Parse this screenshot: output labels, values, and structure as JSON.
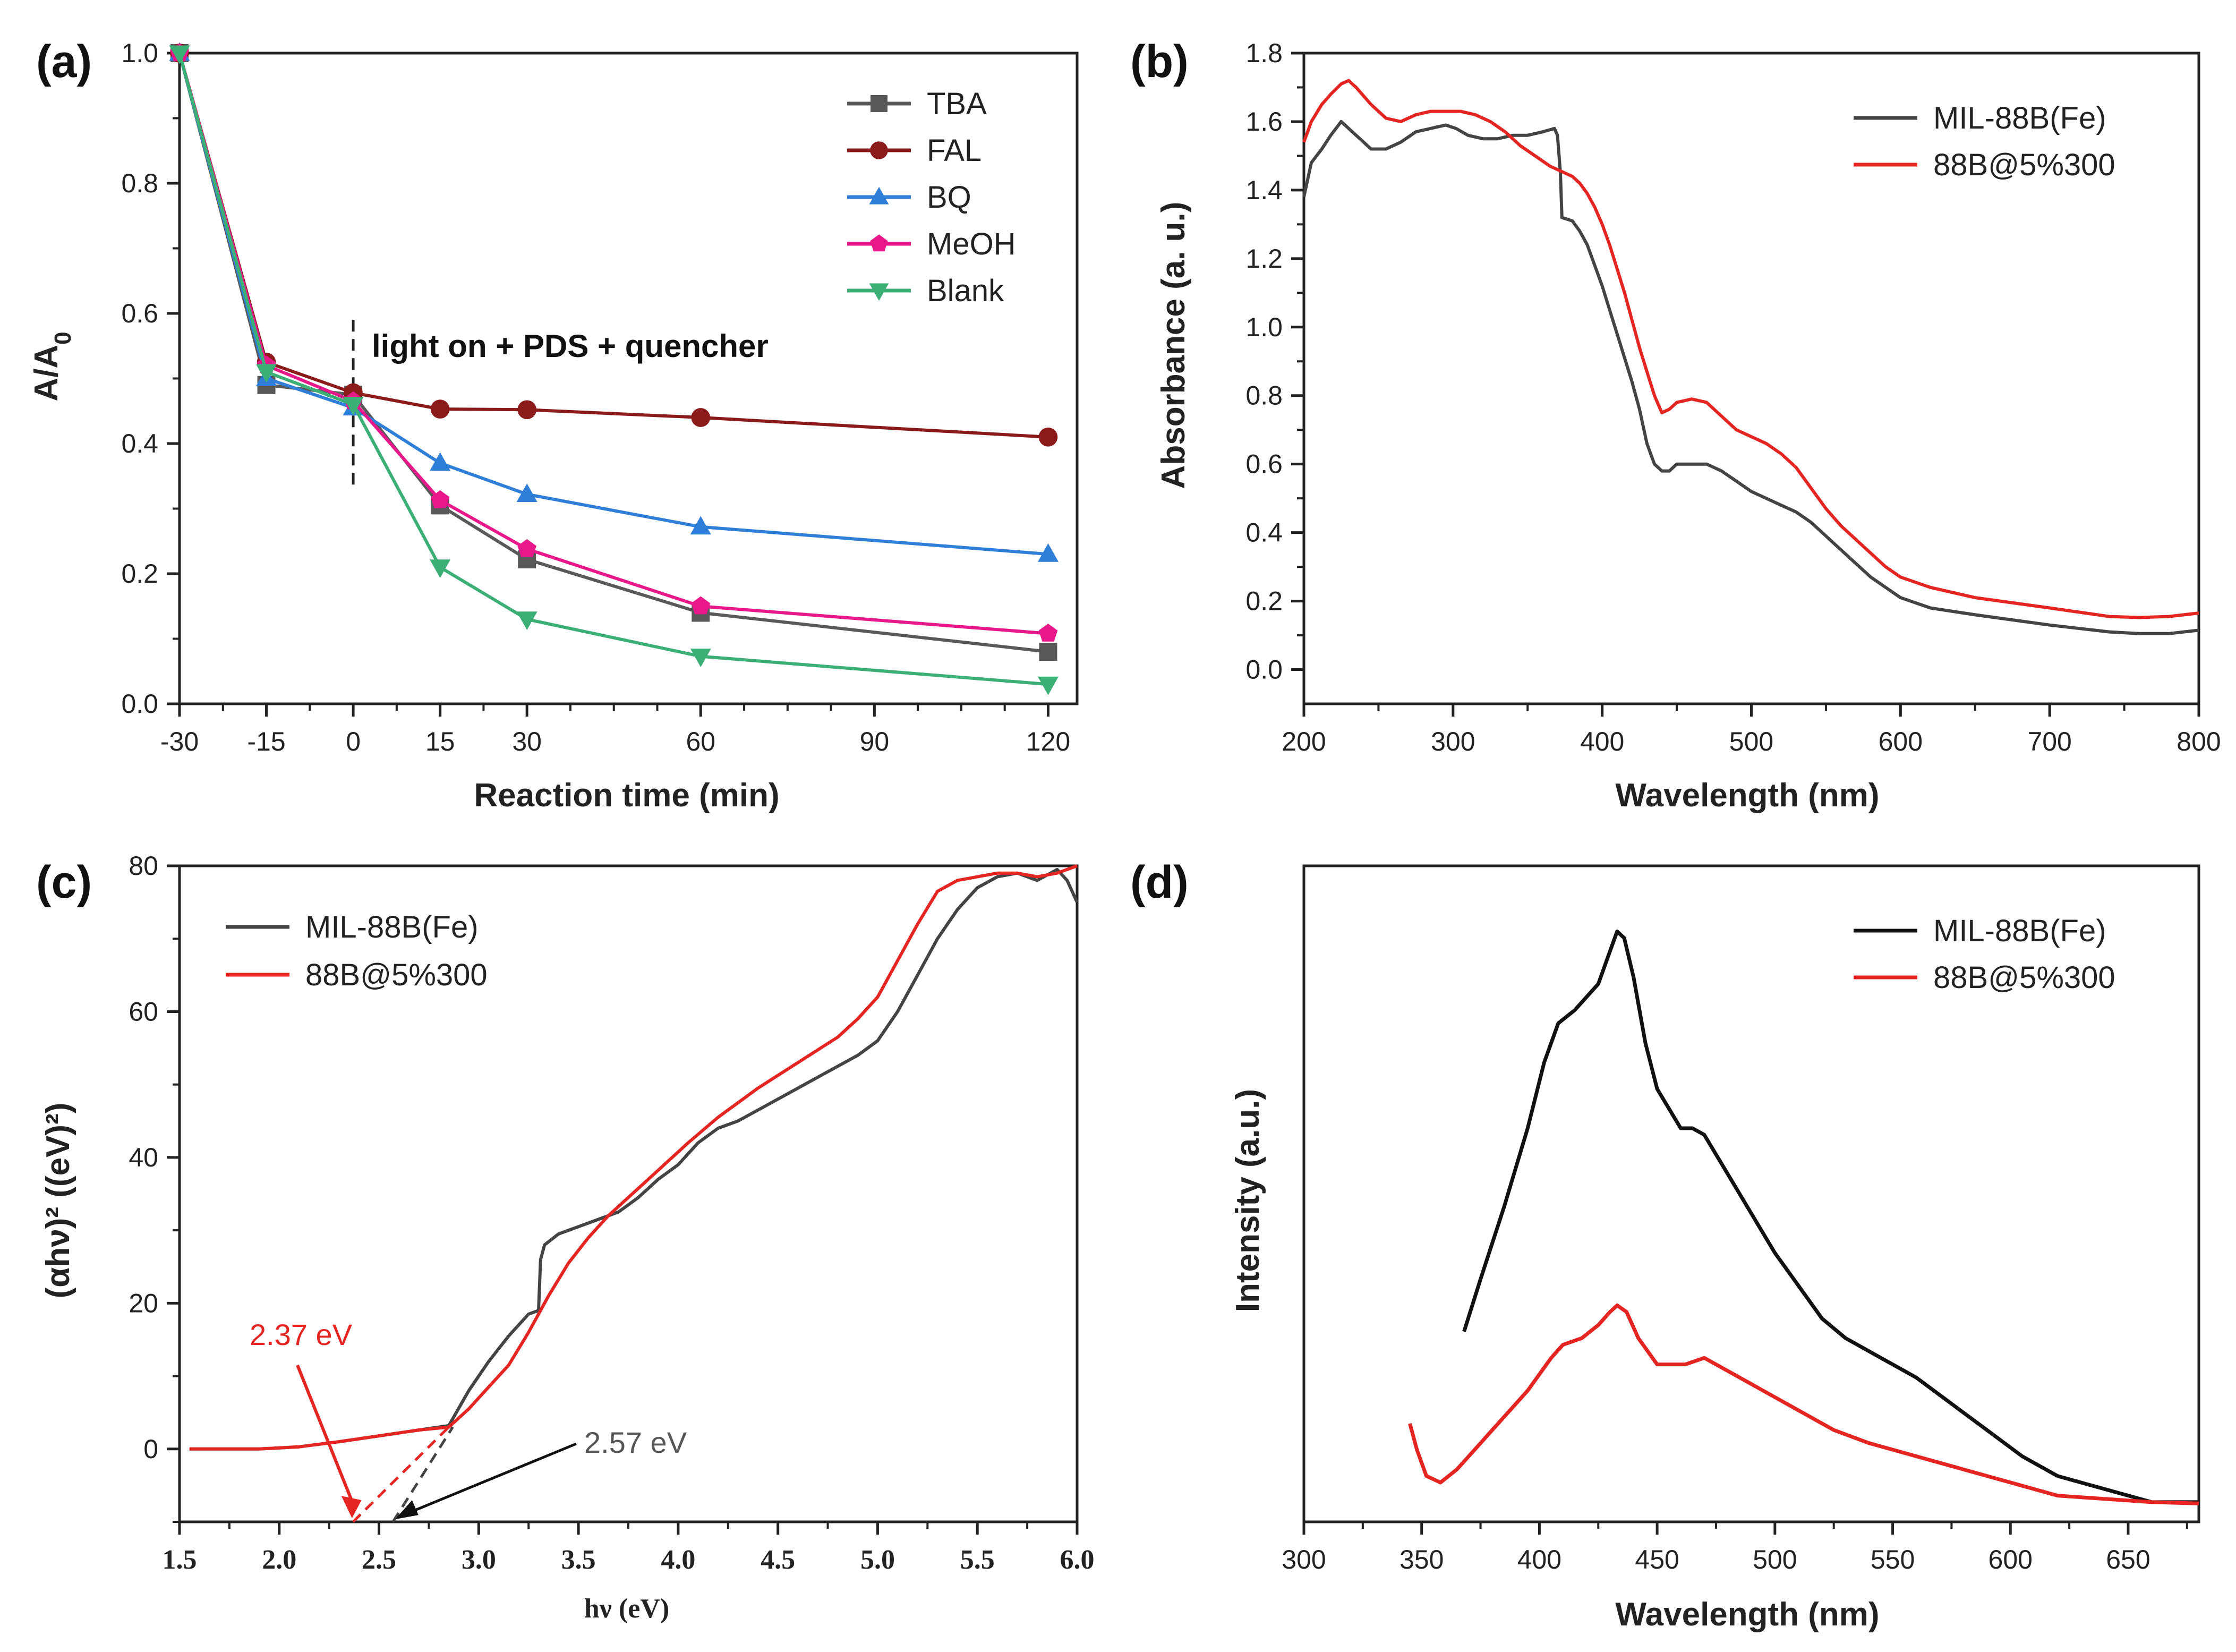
{
  "chart_data": [
    {
      "panel": "(a)",
      "type": "line",
      "xlabel": "Reaction time (min)",
      "ylabel": "A/A",
      "ylabel_sub": "0",
      "xlim": [
        -30,
        125
      ],
      "ylim": [
        0.0,
        1.0
      ],
      "xticks": [
        -30,
        -15,
        0,
        15,
        30,
        60,
        90,
        120
      ],
      "yticks": [
        0.0,
        0.2,
        0.4,
        0.6,
        0.8,
        1.0
      ],
      "x": [
        -30,
        -15,
        0,
        15,
        30,
        60,
        120
      ],
      "annotation": "light on + PDS + quencher",
      "annotation_x": 0,
      "series": [
        {
          "name": "TBA",
          "color": "#595959",
          "marker": "square",
          "values": [
            1.0,
            0.49,
            0.475,
            0.305,
            0.222,
            0.14,
            0.08
          ]
        },
        {
          "name": "FAL",
          "color": "#8B1A1A",
          "marker": "circle",
          "values": [
            1.0,
            0.525,
            0.478,
            0.453,
            0.452,
            0.44,
            0.41
          ]
        },
        {
          "name": "BQ",
          "color": "#2F7FD9",
          "marker": "triangle-up",
          "values": [
            1.0,
            0.5,
            0.455,
            0.37,
            0.322,
            0.272,
            0.23
          ]
        },
        {
          "name": "MeOH",
          "color": "#E8178A",
          "marker": "pentagon",
          "values": [
            1.0,
            0.52,
            0.465,
            0.313,
            0.238,
            0.15,
            0.108
          ]
        },
        {
          "name": "Blank",
          "color": "#3CAF76",
          "marker": "triangle-down",
          "values": [
            1.0,
            0.51,
            0.46,
            0.21,
            0.13,
            0.073,
            0.03
          ]
        }
      ]
    },
    {
      "panel": "(b)",
      "type": "line",
      "xlabel": "Wavelength (nm)",
      "ylabel": "Absorbance (a. u.)",
      "xlim": [
        200,
        800
      ],
      "ylim": [
        -0.1,
        1.8
      ],
      "xticks": [
        200,
        300,
        400,
        500,
        600,
        700,
        800
      ],
      "yticks": [
        0.0,
        0.2,
        0.4,
        0.6,
        0.8,
        1.0,
        1.2,
        1.4,
        1.6,
        1.8
      ],
      "series": [
        {
          "name": "MIL-88B(Fe)",
          "color": "#444444",
          "x": [
            200,
            205,
            212,
            218,
            225,
            230,
            235,
            245,
            255,
            265,
            275,
            285,
            295,
            302,
            310,
            320,
            330,
            340,
            350,
            360,
            368,
            370,
            372,
            373,
            380,
            385,
            390,
            395,
            400,
            405,
            410,
            415,
            420,
            425,
            430,
            435,
            440,
            445,
            450,
            460,
            470,
            480,
            490,
            500,
            510,
            520,
            530,
            540,
            550,
            560,
            570,
            580,
            590,
            600,
            620,
            650,
            700,
            740,
            760,
            780,
            800
          ],
          "values": [
            1.38,
            1.48,
            1.52,
            1.56,
            1.6,
            1.58,
            1.56,
            1.52,
            1.52,
            1.54,
            1.57,
            1.58,
            1.59,
            1.58,
            1.56,
            1.55,
            1.55,
            1.56,
            1.56,
            1.57,
            1.58,
            1.56,
            1.45,
            1.32,
            1.31,
            1.28,
            1.24,
            1.18,
            1.12,
            1.05,
            0.98,
            0.91,
            0.84,
            0.76,
            0.66,
            0.6,
            0.58,
            0.58,
            0.6,
            0.6,
            0.6,
            0.58,
            0.55,
            0.52,
            0.5,
            0.48,
            0.46,
            0.43,
            0.39,
            0.35,
            0.31,
            0.27,
            0.24,
            0.21,
            0.18,
            0.16,
            0.13,
            0.11,
            0.105,
            0.105,
            0.115
          ]
        },
        {
          "name": "88B@5%300",
          "color": "#E52521",
          "x": [
            200,
            205,
            212,
            218,
            225,
            230,
            235,
            245,
            255,
            265,
            275,
            285,
            295,
            305,
            315,
            325,
            335,
            345,
            355,
            365,
            375,
            380,
            385,
            390,
            395,
            400,
            405,
            410,
            415,
            420,
            425,
            430,
            435,
            440,
            445,
            450,
            460,
            470,
            480,
            490,
            500,
            510,
            520,
            530,
            540,
            550,
            560,
            570,
            580,
            590,
            600,
            620,
            650,
            700,
            740,
            760,
            780,
            800
          ],
          "values": [
            1.54,
            1.6,
            1.65,
            1.68,
            1.71,
            1.72,
            1.7,
            1.65,
            1.61,
            1.6,
            1.62,
            1.63,
            1.63,
            1.63,
            1.62,
            1.6,
            1.57,
            1.53,
            1.5,
            1.47,
            1.45,
            1.44,
            1.42,
            1.39,
            1.35,
            1.3,
            1.24,
            1.17,
            1.1,
            1.02,
            0.94,
            0.87,
            0.8,
            0.75,
            0.76,
            0.78,
            0.79,
            0.78,
            0.74,
            0.7,
            0.68,
            0.66,
            0.63,
            0.59,
            0.53,
            0.47,
            0.42,
            0.38,
            0.34,
            0.3,
            0.27,
            0.24,
            0.21,
            0.18,
            0.155,
            0.152,
            0.155,
            0.165
          ]
        }
      ]
    },
    {
      "panel": "(c)",
      "type": "line",
      "xlabel": "hν (eV)",
      "ylabel": "(αhν)² ((eV)²)",
      "xlim": [
        1.5,
        6.0
      ],
      "ylim": [
        -10,
        80
      ],
      "xticks": [
        1.5,
        2.0,
        2.5,
        3.0,
        3.5,
        4.0,
        4.5,
        5.0,
        5.5,
        6.0
      ],
      "xtick_labels": [
        "1.5",
        "2.0",
        "2.5",
        "3.0",
        "3.5",
        "4.0",
        "4.5",
        "5.0",
        "5.5",
        "6.0"
      ],
      "yticks": [
        0,
        20,
        40,
        60,
        80
      ],
      "series": [
        {
          "name": "MIL-88B(Fe)",
          "color": "#444444",
          "x": [
            1.55,
            1.9,
            2.1,
            2.3,
            2.5,
            2.7,
            2.85,
            2.95,
            3.05,
            3.15,
            3.25,
            3.3,
            3.31,
            3.33,
            3.4,
            3.5,
            3.6,
            3.7,
            3.8,
            3.9,
            4.0,
            4.1,
            4.2,
            4.3,
            4.5,
            4.7,
            4.9,
            5.0,
            5.1,
            5.2,
            5.3,
            5.4,
            5.5,
            5.6,
            5.7,
            5.8,
            5.9,
            5.95,
            6.0
          ],
          "values": [
            0,
            0,
            0.3,
            1.0,
            1.8,
            2.6,
            3.2,
            8,
            12,
            15.5,
            18.5,
            19,
            26,
            28,
            29.5,
            30.5,
            31.5,
            32.5,
            34.5,
            37,
            39,
            42,
            44,
            45,
            48,
            51,
            54,
            56,
            60,
            65,
            70,
            74,
            77,
            78.5,
            79,
            78,
            79.5,
            78,
            75
          ]
        },
        {
          "name": "88B@5%300",
          "color": "#E52521",
          "x": [
            1.55,
            1.9,
            2.1,
            2.3,
            2.5,
            2.7,
            2.85,
            2.95,
            3.05,
            3.15,
            3.25,
            3.35,
            3.45,
            3.55,
            3.65,
            3.75,
            3.85,
            3.95,
            4.05,
            4.2,
            4.4,
            4.6,
            4.8,
            4.9,
            5.0,
            5.1,
            5.2,
            5.3,
            5.4,
            5.5,
            5.6,
            5.7,
            5.8,
            5.9,
            6.0
          ],
          "values": [
            0,
            0,
            0.3,
            1.0,
            1.8,
            2.6,
            3.0,
            5.5,
            8.5,
            11.5,
            16,
            21,
            25.5,
            29,
            32,
            34.5,
            37,
            39.5,
            42,
            45.5,
            49.5,
            53,
            56.5,
            59,
            62,
            67,
            72,
            76.5,
            78,
            78.5,
            79,
            79,
            78.5,
            79,
            80
          ]
        }
      ],
      "tangents": [
        {
          "name": "tangent-88B",
          "color": "#E52521",
          "x": [
            2.37,
            2.85
          ],
          "values": [
            -10,
            3
          ]
        },
        {
          "name": "tangent-MIL",
          "color": "#444444",
          "x": [
            2.57,
            2.87
          ],
          "values": [
            -10,
            3
          ]
        }
      ],
      "annotations": [
        {
          "text": "2.37 eV",
          "color": "#E52521"
        },
        {
          "text": "2.57 eV",
          "color": "#555555"
        }
      ]
    },
    {
      "panel": "(d)",
      "type": "line",
      "xlabel": "Wavelength (nm)",
      "ylabel": "Intensity (a.u.)",
      "xlim": [
        300,
        680
      ],
      "ylim": [
        0,
        1
      ],
      "xticks": [
        300,
        350,
        400,
        450,
        500,
        550,
        600,
        650
      ],
      "series": [
        {
          "name": "MIL-88B(Fe)",
          "color": "#111111",
          "x": [
            368,
            375,
            385,
            395,
            402,
            408,
            415,
            420,
            425,
            430,
            433,
            436,
            440,
            445,
            450,
            455,
            460,
            465,
            470,
            480,
            490,
            500,
            510,
            520,
            530,
            545,
            560,
            575,
            590,
            605,
            620,
            640,
            660,
            680
          ],
          "values": [
            0.29,
            0.37,
            0.48,
            0.6,
            0.7,
            0.76,
            0.78,
            0.8,
            0.82,
            0.87,
            0.9,
            0.89,
            0.83,
            0.73,
            0.66,
            0.63,
            0.6,
            0.6,
            0.59,
            0.53,
            0.47,
            0.41,
            0.36,
            0.31,
            0.28,
            0.25,
            0.22,
            0.18,
            0.14,
            0.1,
            0.07,
            0.05,
            0.03,
            0.03
          ]
        },
        {
          "name": "88B@5%300",
          "color": "#E52521",
          "x": [
            345,
            348,
            352,
            358,
            365,
            375,
            385,
            395,
            405,
            410,
            418,
            425,
            430,
            433,
            437,
            442,
            450,
            455,
            462,
            470,
            480,
            495,
            510,
            525,
            540,
            560,
            580,
            600,
            620,
            640,
            660,
            680
          ],
          "values": [
            0.15,
            0.11,
            0.07,
            0.06,
            0.08,
            0.12,
            0.16,
            0.2,
            0.25,
            0.27,
            0.28,
            0.3,
            0.32,
            0.33,
            0.32,
            0.28,
            0.24,
            0.24,
            0.24,
            0.25,
            0.23,
            0.2,
            0.17,
            0.14,
            0.12,
            0.1,
            0.08,
            0.06,
            0.04,
            0.035,
            0.03,
            0.028
          ]
        }
      ]
    }
  ]
}
